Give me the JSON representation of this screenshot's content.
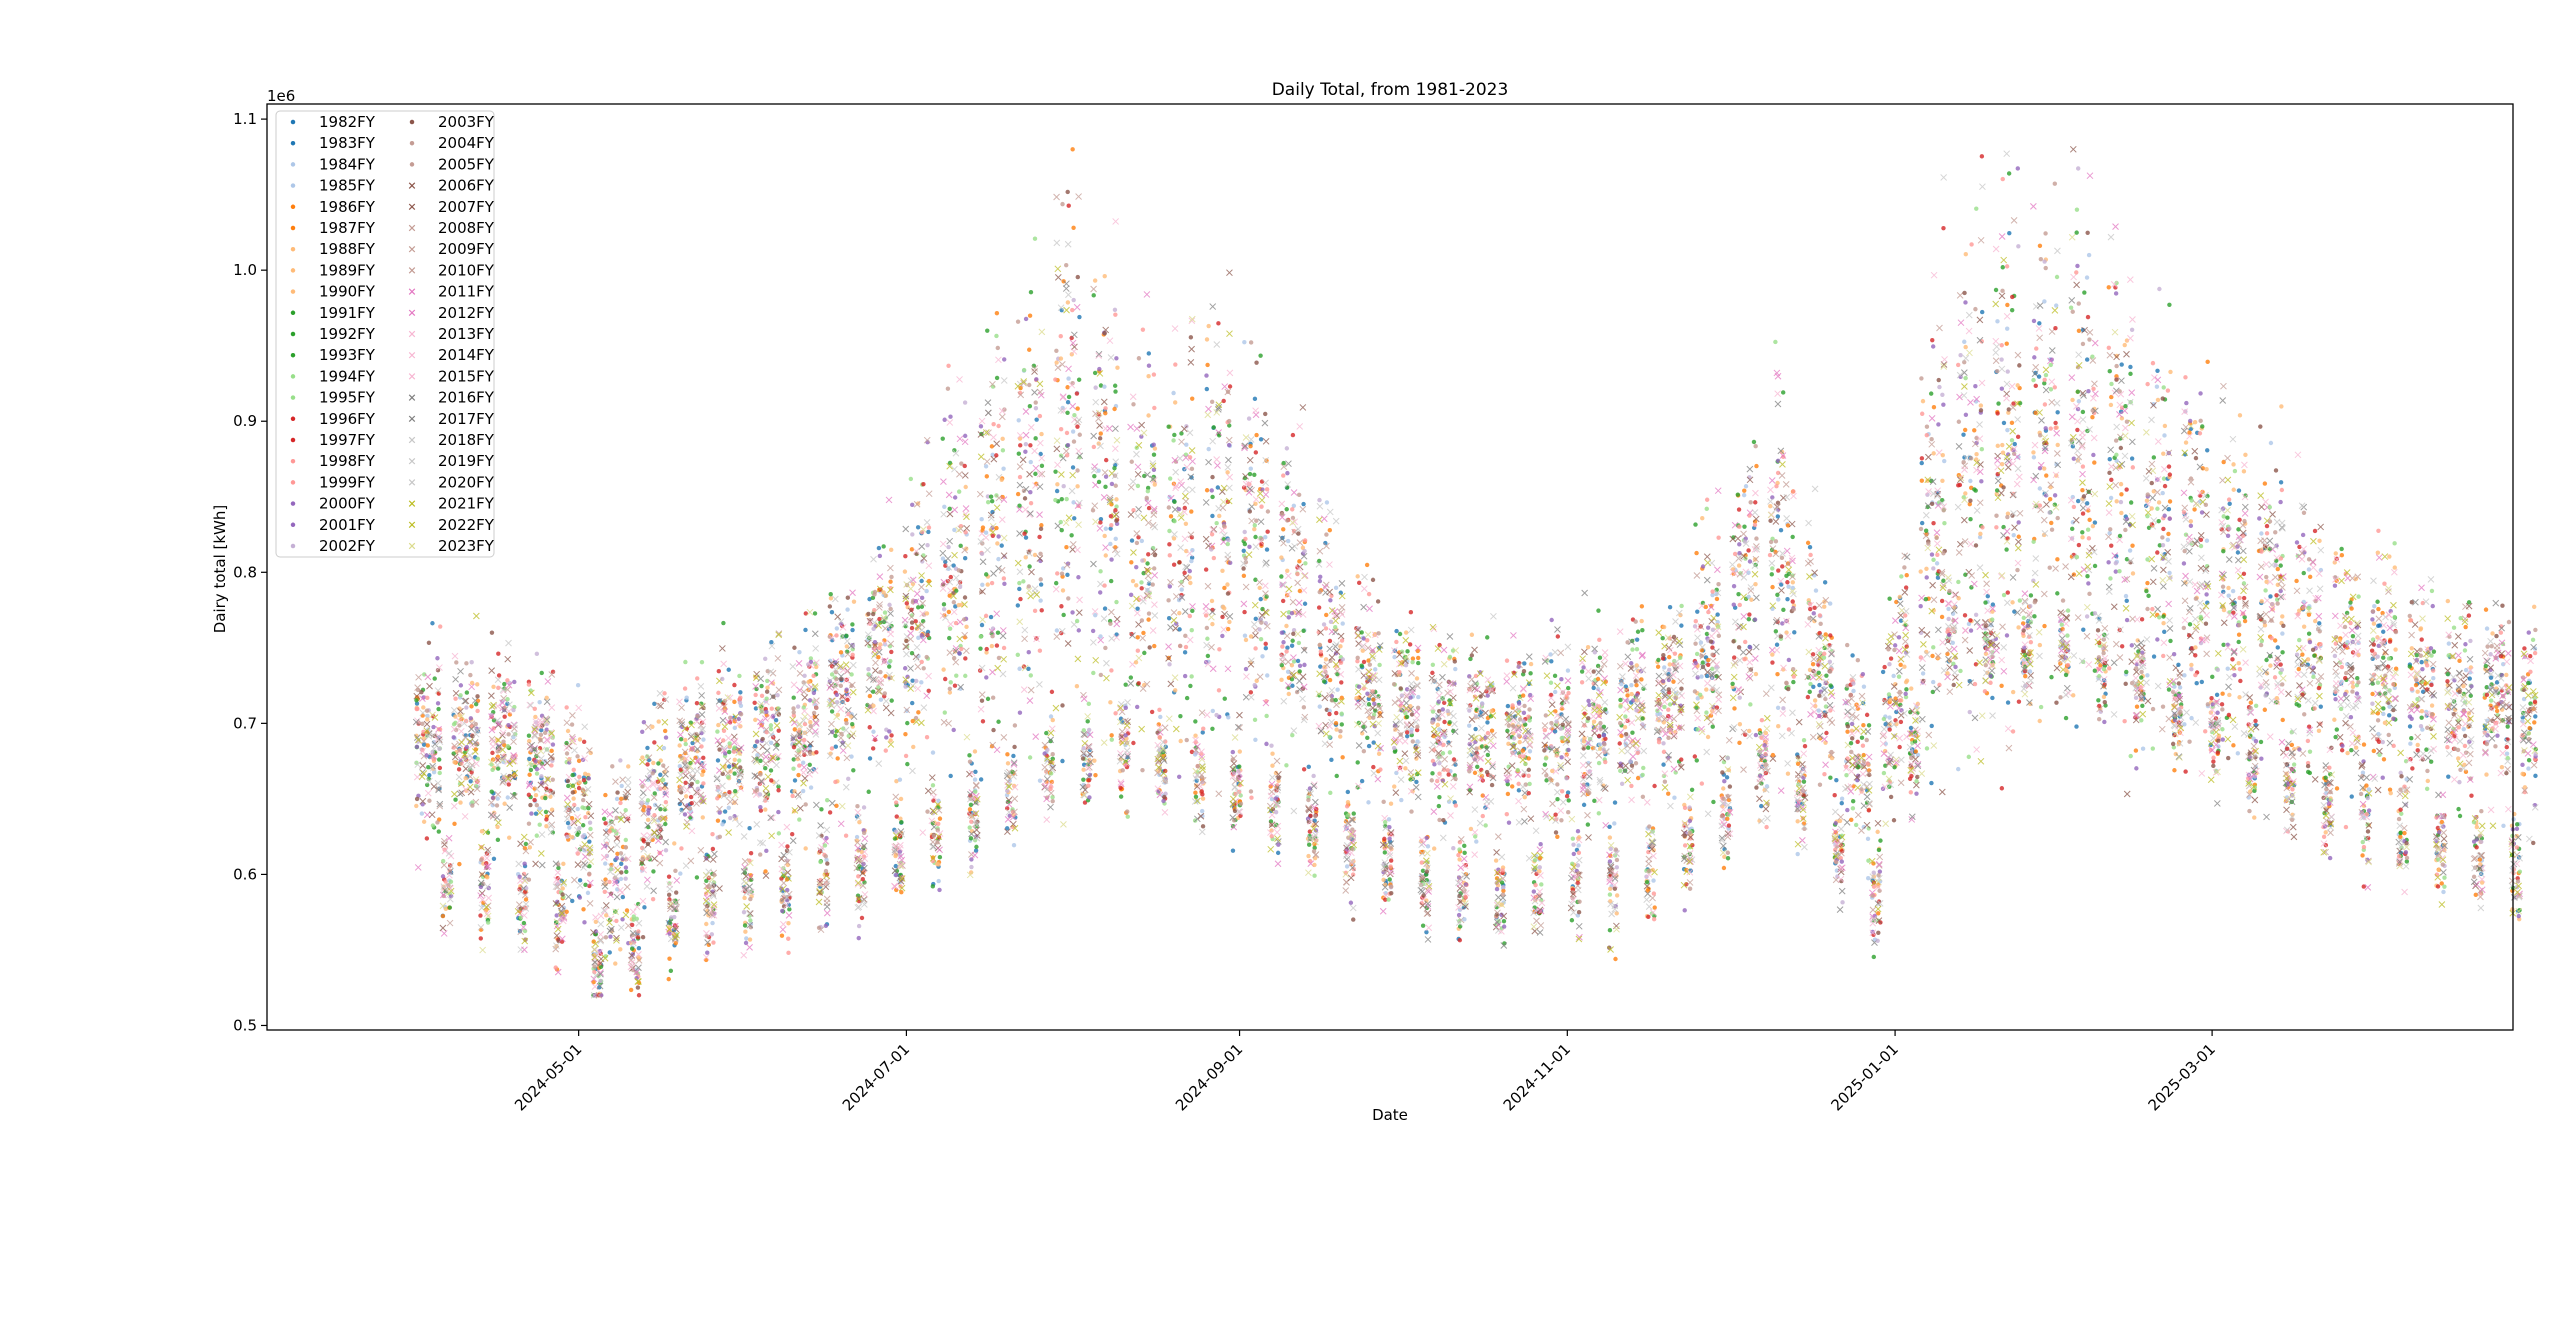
{
  "chart_data": {
    "type": "scatter",
    "title": "Daily Total, from 1981-2023",
    "xlabel": "Date",
    "ylabel": "Dairy total [kWh]",
    "y_scale_label": "1e6",
    "xlim": [
      "2024-03-04",
      "2025-04-26"
    ],
    "ylim": [
      0.497,
      1.11
    ],
    "x_ticks": [
      "2024-05-01",
      "2024-07-01",
      "2024-09-01",
      "2024-11-01",
      "2025-01-01",
      "2025-03-01"
    ],
    "y_ticks": [
      "0.5",
      "0.6",
      "0.7",
      "0.8",
      "0.9",
      "1.0",
      "1.1"
    ],
    "y_tick_values": [
      0.5,
      0.6,
      0.7,
      0.8,
      0.9,
      1.0,
      1.1
    ],
    "grid": false,
    "legend_position": "top-left",
    "legend_columns": 2,
    "date_range": [
      "2024-04-01",
      "2025-04-30"
    ],
    "series": [
      {
        "name": "1982FY",
        "marker": "dot",
        "color": "#1f77b4"
      },
      {
        "name": "1983FY",
        "marker": "dot",
        "color": "#1f77b4"
      },
      {
        "name": "1984FY",
        "marker": "dot",
        "color": "#aec7e8"
      },
      {
        "name": "1985FY",
        "marker": "dot",
        "color": "#aec7e8"
      },
      {
        "name": "1986FY",
        "marker": "dot",
        "color": "#ff7f0e"
      },
      {
        "name": "1987FY",
        "marker": "dot",
        "color": "#ff7f0e"
      },
      {
        "name": "1988FY",
        "marker": "dot",
        "color": "#ffbb78"
      },
      {
        "name": "1989FY",
        "marker": "dot",
        "color": "#ffbb78"
      },
      {
        "name": "1990FY",
        "marker": "dot",
        "color": "#ffbb78"
      },
      {
        "name": "1991FY",
        "marker": "dot",
        "color": "#2ca02c"
      },
      {
        "name": "1992FY",
        "marker": "dot",
        "color": "#2ca02c"
      },
      {
        "name": "1993FY",
        "marker": "dot",
        "color": "#2ca02c"
      },
      {
        "name": "1994FY",
        "marker": "dot",
        "color": "#98df8a"
      },
      {
        "name": "1995FY",
        "marker": "dot",
        "color": "#98df8a"
      },
      {
        "name": "1996FY",
        "marker": "dot",
        "color": "#d62728"
      },
      {
        "name": "1997FY",
        "marker": "dot",
        "color": "#d62728"
      },
      {
        "name": "1998FY",
        "marker": "dot",
        "color": "#ff9896"
      },
      {
        "name": "1999FY",
        "marker": "dot",
        "color": "#ff9896"
      },
      {
        "name": "2000FY",
        "marker": "dot",
        "color": "#9467bd"
      },
      {
        "name": "2001FY",
        "marker": "dot",
        "color": "#9467bd"
      },
      {
        "name": "2002FY",
        "marker": "dot",
        "color": "#c5b0d5"
      },
      {
        "name": "2003FY",
        "marker": "dot",
        "color": "#8c564b"
      },
      {
        "name": "2004FY",
        "marker": "dot",
        "color": "#c49c94"
      },
      {
        "name": "2005FY",
        "marker": "dot",
        "color": "#c49c94"
      },
      {
        "name": "2006FY",
        "marker": "x",
        "color": "#8c564b"
      },
      {
        "name": "2007FY",
        "marker": "x",
        "color": "#8c564b"
      },
      {
        "name": "2008FY",
        "marker": "x",
        "color": "#c49c94"
      },
      {
        "name": "2009FY",
        "marker": "x",
        "color": "#c49c94"
      },
      {
        "name": "2010FY",
        "marker": "x",
        "color": "#c49c94"
      },
      {
        "name": "2011FY",
        "marker": "x",
        "color": "#e377c2"
      },
      {
        "name": "2012FY",
        "marker": "x",
        "color": "#e377c2"
      },
      {
        "name": "2013FY",
        "marker": "x",
        "color": "#f7b6d2"
      },
      {
        "name": "2014FY",
        "marker": "x",
        "color": "#f7b6d2"
      },
      {
        "name": "2015FY",
        "marker": "x",
        "color": "#f7b6d2"
      },
      {
        "name": "2016FY",
        "marker": "x",
        "color": "#7f7f7f"
      },
      {
        "name": "2017FY",
        "marker": "x",
        "color": "#7f7f7f"
      },
      {
        "name": "2018FY",
        "marker": "x",
        "color": "#c7c7c7"
      },
      {
        "name": "2019FY",
        "marker": "x",
        "color": "#c7c7c7"
      },
      {
        "name": "2020FY",
        "marker": "x",
        "color": "#c7c7c7"
      },
      {
        "name": "2021FY",
        "marker": "x",
        "color": "#bcbd22"
      },
      {
        "name": "2022FY",
        "marker": "x",
        "color": "#bcbd22"
      },
      {
        "name": "2023FY",
        "marker": "x",
        "color": "#dbdb8d"
      }
    ],
    "seasonal_profile": [
      {
        "date": "2024-04-01",
        "weekday": 0.69,
        "weekend": 0.6
      },
      {
        "date": "2024-04-15",
        "weekday": 0.69,
        "weekend": 0.59
      },
      {
        "date": "2024-04-29",
        "weekday": 0.66,
        "weekend": 0.57
      },
      {
        "date": "2024-05-06",
        "weekday": 0.6,
        "weekend": 0.53
      },
      {
        "date": "2024-05-20",
        "weekday": 0.67,
        "weekend": 0.58
      },
      {
        "date": "2024-06-10",
        "weekday": 0.69,
        "weekend": 0.59
      },
      {
        "date": "2024-07-01",
        "weekday": 0.76,
        "weekend": 0.62
      },
      {
        "date": "2024-07-22",
        "weekday": 0.84,
        "weekend": 0.66
      },
      {
        "date": "2024-08-01",
        "weekday": 0.88,
        "weekend": 0.68
      },
      {
        "date": "2024-08-15",
        "weekday": 0.82,
        "weekend": 0.68
      },
      {
        "date": "2024-09-01",
        "weekday": 0.83,
        "weekend": 0.66
      },
      {
        "date": "2024-09-20",
        "weekday": 0.74,
        "weekend": 0.62
      },
      {
        "date": "2024-10-10",
        "weekday": 0.69,
        "weekend": 0.59
      },
      {
        "date": "2024-11-01",
        "weekday": 0.69,
        "weekend": 0.59
      },
      {
        "date": "2024-11-20",
        "weekday": 0.72,
        "weekend": 0.61
      },
      {
        "date": "2024-12-10",
        "weekday": 0.8,
        "weekend": 0.68
      },
      {
        "date": "2024-12-28",
        "weekday": 0.66,
        "weekend": 0.58
      },
      {
        "date": "2025-01-10",
        "weekday": 0.86,
        "weekend": 0.76
      },
      {
        "date": "2025-02-01",
        "weekday": 0.89,
        "weekend": 0.75
      },
      {
        "date": "2025-03-01",
        "weekday": 0.8,
        "weekend": 0.7
      },
      {
        "date": "2025-03-20",
        "weekday": 0.75,
        "weekend": 0.65
      },
      {
        "date": "2025-04-30",
        "weekday": 0.7,
        "weekend": 0.6
      }
    ]
  }
}
